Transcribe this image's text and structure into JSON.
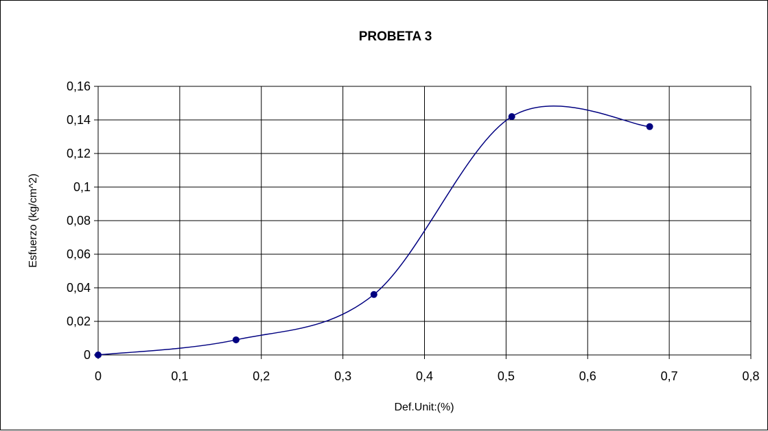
{
  "chart_data": {
    "type": "scatter",
    "title": "PROBETA 3",
    "xlabel": "Def.Unit:(%)",
    "ylabel": "Esfuerzo (kg/cm^2)",
    "xlim": [
      0,
      0.8
    ],
    "ylim": [
      0,
      0.16
    ],
    "grid": true,
    "x_ticks": [
      "0",
      "0,1",
      "0,2",
      "0,3",
      "0,4",
      "0,5",
      "0,6",
      "0,7",
      "0,8"
    ],
    "y_ticks": [
      "0",
      "0,02",
      "0,04",
      "0,06",
      "0,08",
      "0,1",
      "0,12",
      "0,14",
      "0,16"
    ],
    "series": [
      {
        "line": "smoothed",
        "color": "#000080",
        "points": [
          {
            "x": 0,
            "y": 0
          },
          {
            "x": 0.169,
            "y": 0.009
          },
          {
            "x": 0.338,
            "y": 0.036
          },
          {
            "x": 0.507,
            "y": 0.142
          },
          {
            "x": 0.676,
            "y": 0.136
          }
        ]
      }
    ]
  }
}
